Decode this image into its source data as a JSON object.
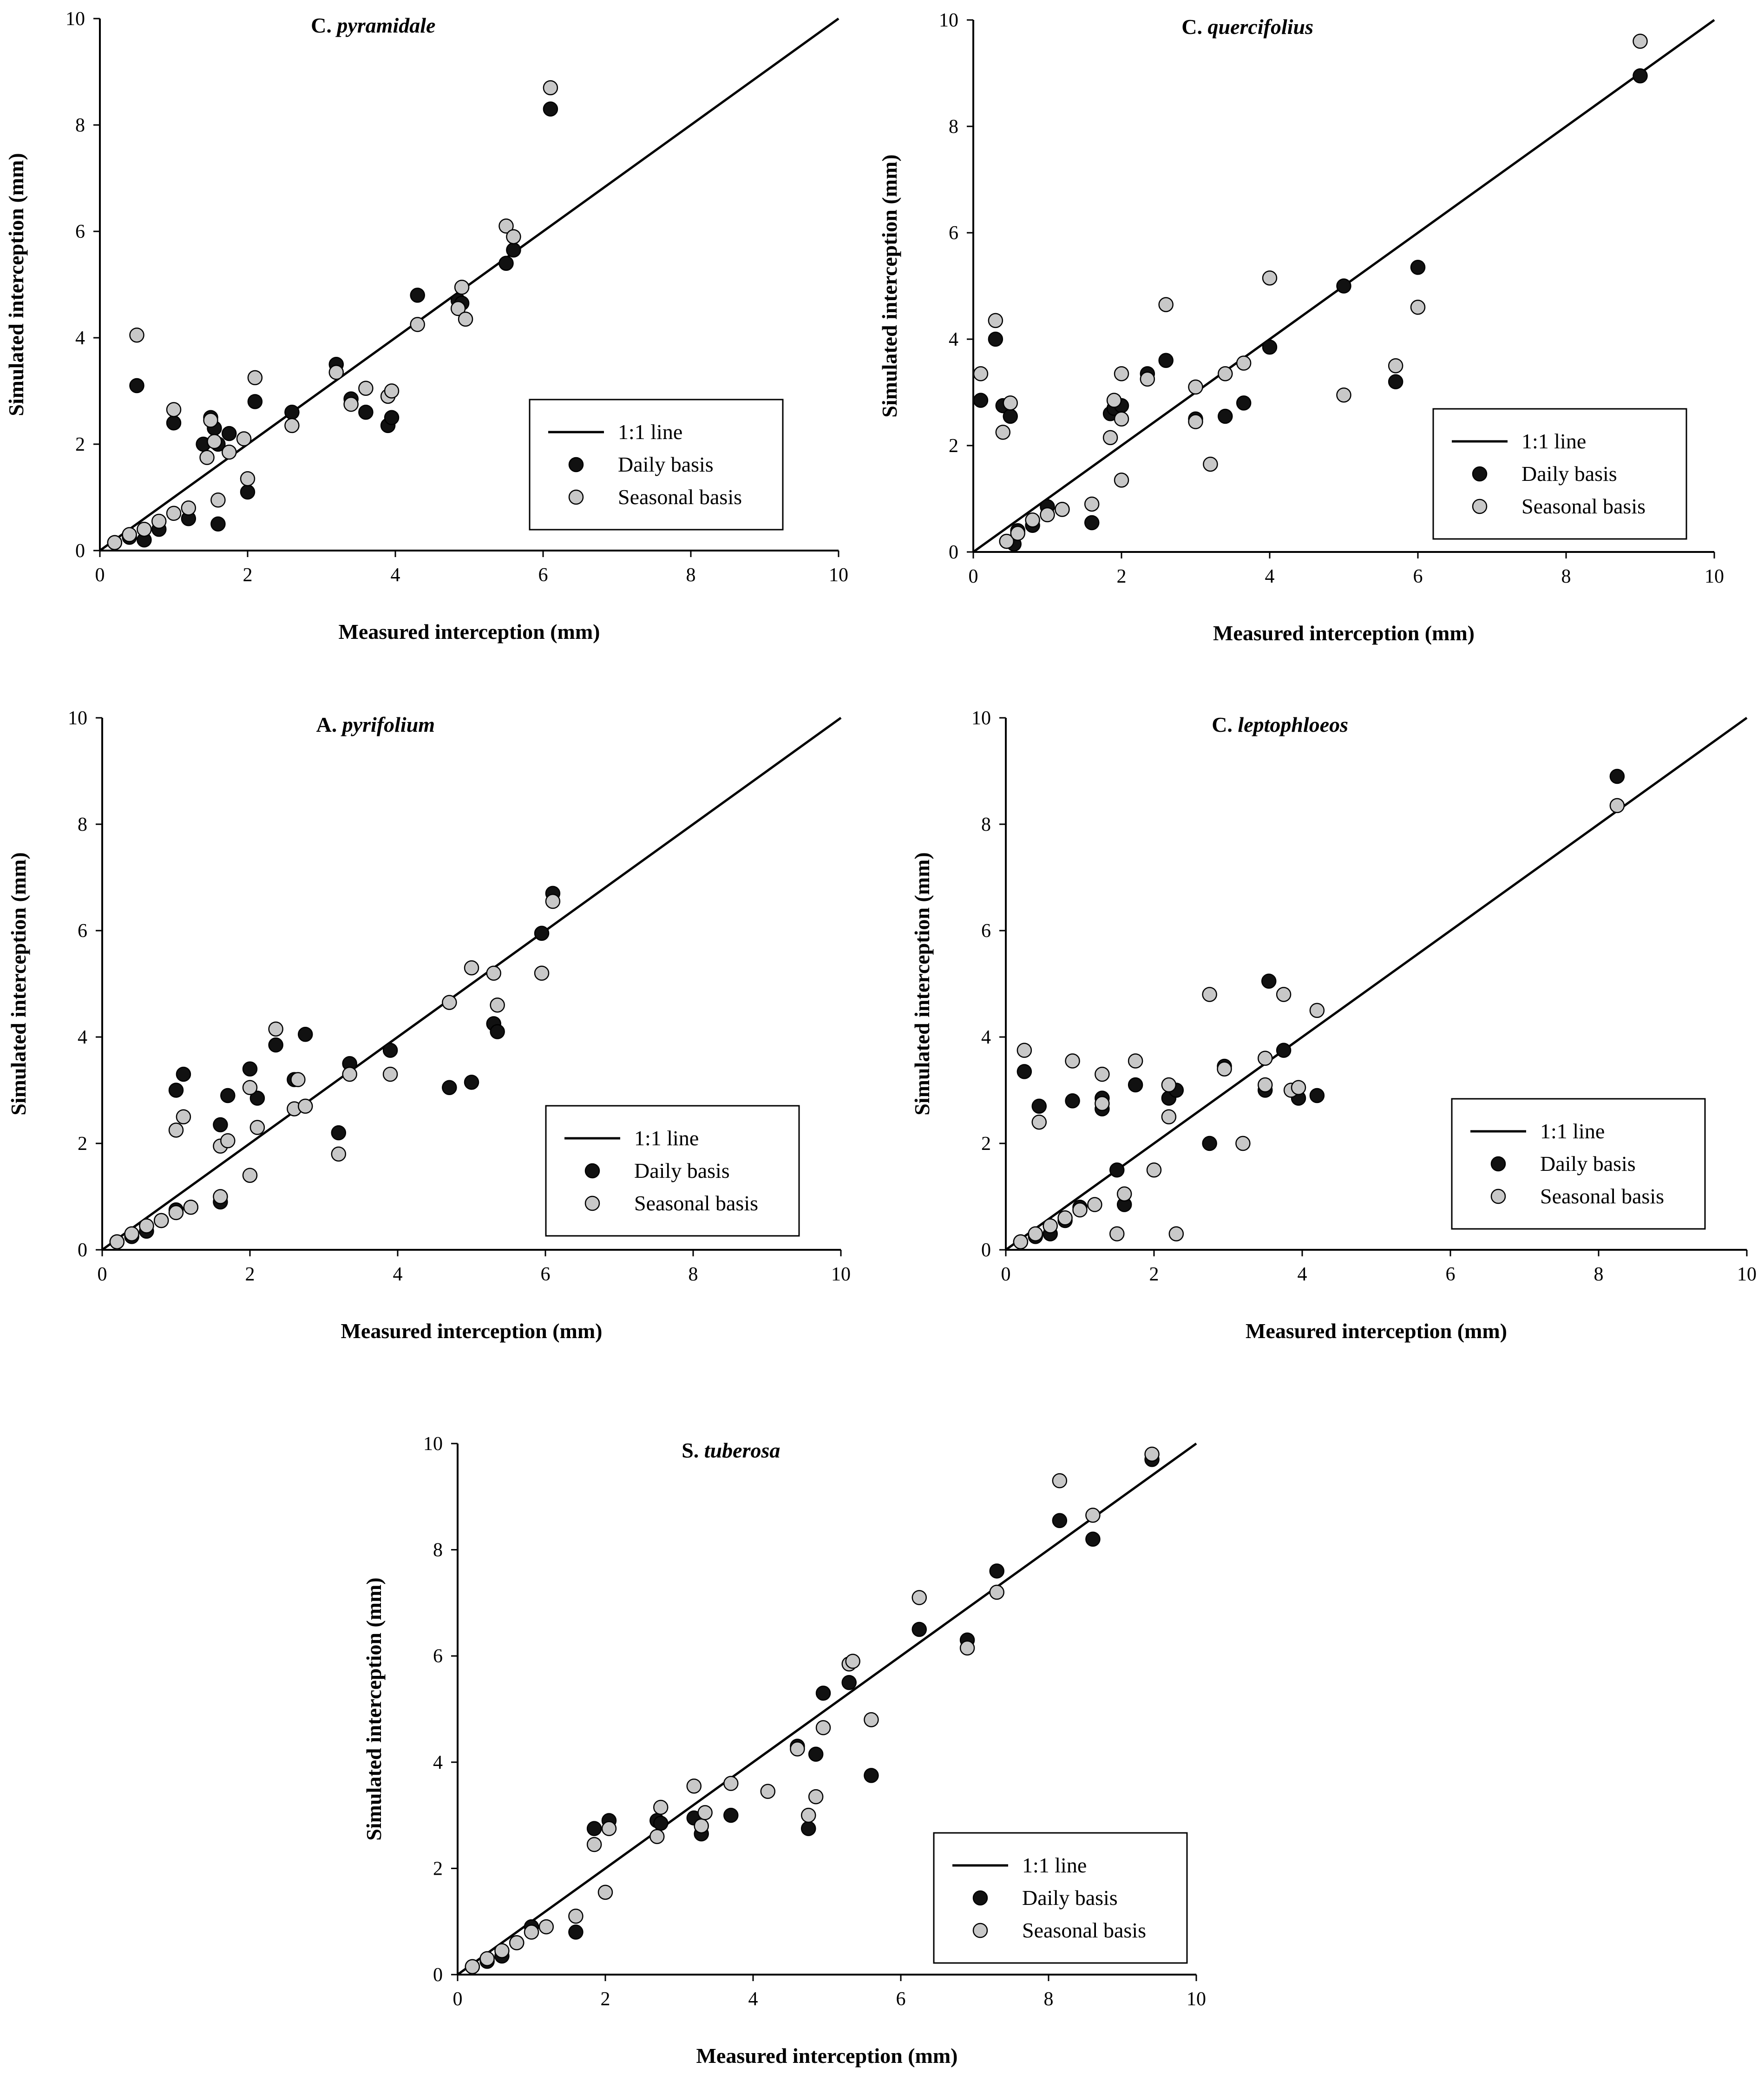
{
  "figure": {
    "legend_labels": {
      "line": "1:1 line",
      "daily": "Daily basis",
      "seasonal": "Seasonal basis"
    },
    "colors": {
      "daily": "#111111",
      "seasonal": "#c8c8c8",
      "line": "#000000",
      "marker_edge": "#000000"
    }
  },
  "chart_data": [
    {
      "type": "scatter",
      "title_prefix": "C.",
      "title_species": "pyramidale",
      "xlabel": "Measured interception (mm)",
      "ylabel": "Simulated interception (mm)",
      "xlim": [
        0,
        10
      ],
      "ylim": [
        0,
        10
      ],
      "xticks": [
        0,
        2,
        4,
        6,
        8,
        10
      ],
      "yticks": [
        0,
        2,
        4,
        6,
        8,
        10
      ],
      "series": [
        {
          "name": "1:1 line",
          "kind": "line",
          "x": [
            0,
            10
          ],
          "y": [
            0,
            10
          ]
        },
        {
          "name": "Daily basis",
          "kind": "points",
          "x": [
            0.2,
            0.4,
            0.5,
            0.6,
            0.8,
            1.0,
            1.2,
            1.4,
            1.5,
            1.55,
            1.6,
            1.6,
            1.75,
            2.0,
            2.1,
            2.6,
            3.2,
            3.4,
            3.6,
            3.9,
            3.95,
            4.3,
            4.85,
            4.9,
            5.5,
            5.6,
            6.1
          ],
          "y": [
            0.15,
            0.25,
            3.1,
            0.2,
            0.4,
            2.4,
            0.6,
            2.0,
            2.5,
            2.3,
            0.5,
            2.0,
            2.2,
            1.1,
            2.8,
            2.6,
            3.5,
            2.85,
            2.6,
            2.35,
            2.5,
            4.8,
            4.7,
            4.65,
            5.4,
            5.65,
            8.3
          ]
        },
        {
          "name": "Seasonal basis",
          "kind": "points",
          "x": [
            0.2,
            0.4,
            0.5,
            0.6,
            0.8,
            1.0,
            1.0,
            1.2,
            1.45,
            1.5,
            1.55,
            1.6,
            1.75,
            1.95,
            2.0,
            2.1,
            2.6,
            3.2,
            3.4,
            3.6,
            3.9,
            3.95,
            4.3,
            4.85,
            4.9,
            4.95,
            5.5,
            5.6,
            6.1
          ],
          "y": [
            0.15,
            0.3,
            4.05,
            0.4,
            0.55,
            2.65,
            0.7,
            0.8,
            1.75,
            2.45,
            2.05,
            0.95,
            1.85,
            2.1,
            1.35,
            3.25,
            2.35,
            3.35,
            2.75,
            3.05,
            2.9,
            3.0,
            4.25,
            4.55,
            4.95,
            4.35,
            6.1,
            5.9,
            8.7
          ]
        }
      ]
    },
    {
      "type": "scatter",
      "title_prefix": "C.",
      "title_species": "quercifolius",
      "xlabel": "Measured interception (mm)",
      "ylabel": "Simulated interception (mm)",
      "xlim": [
        0,
        10
      ],
      "ylim": [
        0,
        10
      ],
      "xticks": [
        0,
        2,
        4,
        6,
        8,
        10
      ],
      "yticks": [
        0,
        2,
        4,
        6,
        8,
        10
      ],
      "series": [
        {
          "name": "1:1 line",
          "kind": "line",
          "x": [
            0,
            10
          ],
          "y": [
            0,
            10
          ]
        },
        {
          "name": "Daily basis",
          "kind": "points",
          "x": [
            0.1,
            0.3,
            0.4,
            0.45,
            0.5,
            0.55,
            0.6,
            0.8,
            1.0,
            1.2,
            1.6,
            1.85,
            1.9,
            2.0,
            2.35,
            2.6,
            3.0,
            3.4,
            3.65,
            4.0,
            5.0,
            5.7,
            6.0,
            9.0
          ],
          "y": [
            2.85,
            4.0,
            2.75,
            0.2,
            2.55,
            0.15,
            0.4,
            0.5,
            0.85,
            0.8,
            0.55,
            2.6,
            2.7,
            2.75,
            3.35,
            3.6,
            2.5,
            2.55,
            2.8,
            3.85,
            5.0,
            3.2,
            5.35,
            8.95
          ]
        },
        {
          "name": "Seasonal basis",
          "kind": "points",
          "x": [
            0.1,
            0.3,
            0.4,
            0.45,
            0.5,
            0.6,
            0.8,
            1.0,
            1.2,
            1.6,
            1.85,
            1.9,
            2.0,
            2.0,
            2.0,
            2.35,
            2.6,
            3.0,
            3.0,
            3.2,
            3.4,
            3.65,
            4.0,
            5.0,
            5.7,
            6.0,
            9.0
          ],
          "y": [
            3.35,
            4.35,
            2.25,
            0.2,
            2.8,
            0.35,
            0.6,
            0.7,
            0.8,
            0.9,
            2.15,
            2.85,
            3.35,
            2.5,
            1.35,
            3.25,
            4.65,
            3.1,
            2.45,
            1.65,
            3.35,
            3.55,
            5.15,
            2.95,
            3.5,
            4.6,
            9.6
          ]
        }
      ]
    },
    {
      "type": "scatter",
      "title_prefix": "A.",
      "title_species": "pyrifolium",
      "xlabel": "Measured interception (mm)",
      "ylabel": "Simulated interception (mm)",
      "xlim": [
        0,
        10
      ],
      "ylim": [
        0,
        10
      ],
      "xticks": [
        0,
        2,
        4,
        6,
        8,
        10
      ],
      "yticks": [
        0,
        2,
        4,
        6,
        8,
        10
      ],
      "series": [
        {
          "name": "1:1 line",
          "kind": "line",
          "x": [
            0,
            10
          ],
          "y": [
            0,
            10
          ]
        },
        {
          "name": "Daily basis",
          "kind": "points",
          "x": [
            0.2,
            0.4,
            0.6,
            0.8,
            1.0,
            1.0,
            1.1,
            1.2,
            1.6,
            1.6,
            1.7,
            2.0,
            2.1,
            2.35,
            2.6,
            2.75,
            3.2,
            3.35,
            3.9,
            4.7,
            5.0,
            5.3,
            5.35,
            5.95,
            6.1
          ],
          "y": [
            0.15,
            0.25,
            0.35,
            0.55,
            3.0,
            0.75,
            3.3,
            0.8,
            2.35,
            0.9,
            2.9,
            3.4,
            2.85,
            3.85,
            3.2,
            4.05,
            2.2,
            3.5,
            3.75,
            3.05,
            3.15,
            4.25,
            4.1,
            5.95,
            6.7
          ]
        },
        {
          "name": "Seasonal basis",
          "kind": "points",
          "x": [
            0.2,
            0.4,
            0.6,
            0.8,
            1.0,
            1.0,
            1.1,
            1.2,
            1.6,
            1.6,
            1.7,
            2.0,
            2.0,
            2.1,
            2.35,
            2.6,
            2.65,
            2.75,
            3.2,
            3.35,
            3.9,
            4.7,
            5.0,
            5.3,
            5.35,
            5.95,
            6.1
          ],
          "y": [
            0.15,
            0.3,
            0.45,
            0.55,
            2.25,
            0.7,
            2.5,
            0.8,
            1.95,
            1.0,
            2.05,
            3.05,
            1.4,
            2.3,
            4.15,
            2.65,
            3.2,
            2.7,
            1.8,
            3.3,
            3.3,
            4.65,
            5.3,
            5.2,
            4.6,
            5.2,
            6.55
          ]
        }
      ]
    },
    {
      "type": "scatter",
      "title_prefix": "C.",
      "title_species": "leptophloeos",
      "xlabel": "Measured interception (mm)",
      "ylabel": "Simulated interception (mm)",
      "xlim": [
        0,
        10
      ],
      "ylim": [
        0,
        10
      ],
      "xticks": [
        0,
        2,
        4,
        6,
        8,
        10
      ],
      "yticks": [
        0,
        2,
        4,
        6,
        8,
        10
      ],
      "series": [
        {
          "name": "1:1 line",
          "kind": "line",
          "x": [
            0,
            10
          ],
          "y": [
            0,
            10
          ]
        },
        {
          "name": "Daily basis",
          "kind": "points",
          "x": [
            0.2,
            0.25,
            0.4,
            0.45,
            0.6,
            0.8,
            0.9,
            1.0,
            1.3,
            1.3,
            1.5,
            1.6,
            1.75,
            2.2,
            2.3,
            2.75,
            2.95,
            3.5,
            3.55,
            3.75,
            3.95,
            4.2,
            8.25
          ],
          "y": [
            0.15,
            3.35,
            0.25,
            2.7,
            0.3,
            0.55,
            2.8,
            0.8,
            2.85,
            2.65,
            1.5,
            0.85,
            3.1,
            2.85,
            3.0,
            2.0,
            3.45,
            3.0,
            5.05,
            3.75,
            2.85,
            2.9,
            8.9
          ]
        },
        {
          "name": "Seasonal basis",
          "kind": "points",
          "x": [
            0.2,
            0.25,
            0.4,
            0.45,
            0.6,
            0.8,
            0.9,
            1.0,
            1.2,
            1.3,
            1.3,
            1.5,
            1.6,
            1.75,
            2.0,
            2.2,
            2.2,
            2.3,
            2.75,
            2.95,
            3.2,
            3.5,
            3.5,
            3.75,
            3.85,
            3.95,
            4.2,
            8.25
          ],
          "y": [
            0.15,
            3.75,
            0.3,
            2.4,
            0.45,
            0.6,
            3.55,
            0.75,
            0.85,
            3.3,
            2.75,
            0.3,
            1.05,
            3.55,
            1.5,
            2.5,
            3.1,
            0.3,
            4.8,
            3.4,
            2.0,
            3.6,
            3.1,
            4.8,
            3.0,
            3.05,
            4.5,
            8.35
          ]
        }
      ]
    },
    {
      "type": "scatter",
      "title_prefix": "S.",
      "title_species": "tuberosa",
      "xlabel": "Measured interception (mm)",
      "ylabel": "Simulated interception (mm)",
      "xlim": [
        0,
        10
      ],
      "ylim": [
        0,
        10
      ],
      "xticks": [
        0,
        2,
        4,
        6,
        8,
        10
      ],
      "yticks": [
        0,
        2,
        4,
        6,
        8,
        10
      ],
      "series": [
        {
          "name": "1:1 line",
          "kind": "line",
          "x": [
            0,
            10
          ],
          "y": [
            0,
            10
          ]
        },
        {
          "name": "Daily basis",
          "kind": "points",
          "x": [
            0.2,
            0.4,
            0.6,
            0.8,
            1.0,
            1.6,
            1.85,
            2.05,
            2.7,
            2.75,
            3.2,
            3.3,
            3.7,
            4.6,
            4.75,
            4.85,
            4.95,
            5.3,
            5.6,
            6.25,
            6.9,
            7.3,
            8.15,
            8.6,
            9.4
          ],
          "y": [
            0.15,
            0.25,
            0.35,
            0.6,
            0.9,
            0.8,
            2.75,
            2.9,
            2.9,
            2.85,
            2.95,
            2.65,
            3.0,
            4.3,
            2.75,
            4.15,
            5.3,
            5.5,
            3.75,
            6.5,
            6.3,
            7.6,
            8.55,
            8.2,
            9.7
          ]
        },
        {
          "name": "Seasonal basis",
          "kind": "points",
          "x": [
            0.2,
            0.4,
            0.6,
            0.8,
            1.0,
            1.2,
            1.6,
            1.85,
            2.0,
            2.05,
            2.7,
            2.75,
            3.2,
            3.3,
            3.35,
            3.7,
            4.2,
            4.6,
            4.75,
            4.85,
            4.95,
            5.3,
            5.35,
            5.6,
            6.25,
            6.9,
            7.3,
            8.15,
            8.6,
            9.4
          ],
          "y": [
            0.15,
            0.3,
            0.45,
            0.6,
            0.8,
            0.9,
            1.1,
            2.45,
            1.55,
            2.75,
            2.6,
            3.15,
            3.55,
            2.8,
            3.05,
            3.6,
            3.45,
            4.25,
            3.0,
            3.35,
            4.65,
            5.85,
            5.9,
            4.8,
            7.1,
            6.15,
            7.2,
            9.3,
            8.65,
            9.8
          ]
        }
      ]
    }
  ]
}
